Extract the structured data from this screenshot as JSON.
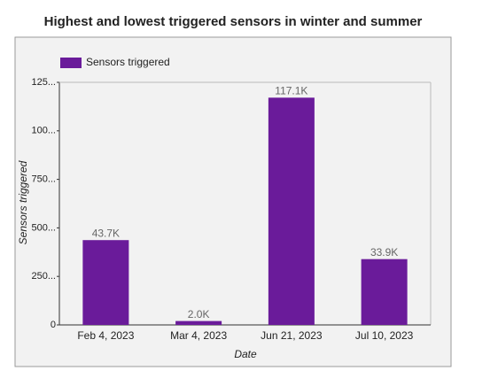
{
  "chart_data": {
    "type": "bar",
    "title": "Highest and lowest triggered sensors in winter and summer",
    "x_label": "Date",
    "y_label": "Sensors triggered",
    "categories": [
      "Feb 4, 2023",
      "Mar 4, 2023",
      "Jun 21, 2023",
      "Jul 10, 2023"
    ],
    "series": [
      {
        "name": "Sensors triggered",
        "color": "#6a1b9a",
        "values": [
          43700,
          2000,
          117100,
          33900
        ],
        "value_labels": [
          "43.7K",
          "2.0K",
          "117.1K",
          "33.9K"
        ]
      }
    ],
    "ylim": [
      0,
      125000
    ],
    "yticks": [
      0,
      {
        "value": 25000,
        "label": "250..."
      },
      {
        "value": 50000,
        "label": "500..."
      },
      {
        "value": 75000,
        "label": "750..."
      },
      {
        "value": 100000,
        "label": "100..."
      },
      {
        "value": 125000,
        "label": "125..."
      }
    ],
    "legend": "top-left"
  }
}
